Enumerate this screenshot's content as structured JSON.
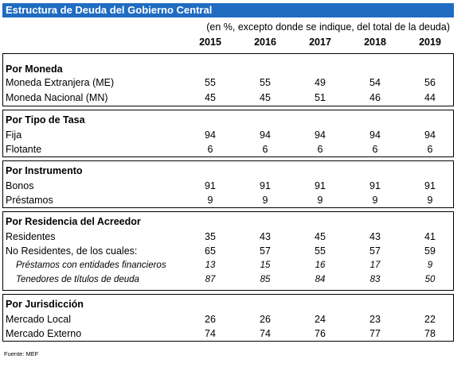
{
  "title": "Estructura de Deuda del Gobierno Central",
  "subtitle": "(en %, excepto donde se indique, del total de la deuda)",
  "years": [
    "2015",
    "2016",
    "2017",
    "2018",
    "2019"
  ],
  "sections": [
    {
      "header": "Por Moneda",
      "rows": [
        {
          "label": "Moneda Extranjera (ME)",
          "values": [
            "55",
            "55",
            "49",
            "54",
            "56"
          ]
        },
        {
          "label": "Moneda Nacional (MN)",
          "values": [
            "45",
            "45",
            "51",
            "46",
            "44"
          ]
        }
      ]
    },
    {
      "header": "Por Tipo de Tasa",
      "rows": [
        {
          "label": "Fija",
          "values": [
            "94",
            "94",
            "94",
            "94",
            "94"
          ]
        },
        {
          "label": "Flotante",
          "values": [
            "6",
            "6",
            "6",
            "6",
            "6"
          ]
        }
      ]
    },
    {
      "header": "Por Instrumento",
      "rows": [
        {
          "label": "Bonos",
          "values": [
            "91",
            "91",
            "91",
            "91",
            "91"
          ]
        },
        {
          "label": "Préstamos",
          "values": [
            "9",
            "9",
            "9",
            "9",
            "9"
          ]
        }
      ]
    },
    {
      "header": "Por Residencia del Acreedor",
      "rows": [
        {
          "label": "Residentes",
          "values": [
            "35",
            "43",
            "45",
            "43",
            "41"
          ]
        },
        {
          "label": "No Residentes, de los cuales:",
          "values": [
            "65",
            "57",
            "55",
            "57",
            "59"
          ]
        },
        {
          "label": "Préstamos con entidades financieros",
          "values": [
            "13",
            "15",
            "16",
            "17",
            "9"
          ],
          "italic": true
        },
        {
          "label": "Tenedores de títulos de deuda",
          "values": [
            "87",
            "85",
            "84",
            "83",
            "50"
          ],
          "italic": true
        }
      ]
    },
    {
      "header": "Por Jurisdicción",
      "rows": [
        {
          "label": "Mercado Local",
          "values": [
            "26",
            "26",
            "24",
            "23",
            "22"
          ]
        },
        {
          "label": "Mercado Externo",
          "values": [
            "74",
            "74",
            "76",
            "77",
            "78"
          ]
        }
      ]
    }
  ],
  "source": "Fuente: MEF"
}
